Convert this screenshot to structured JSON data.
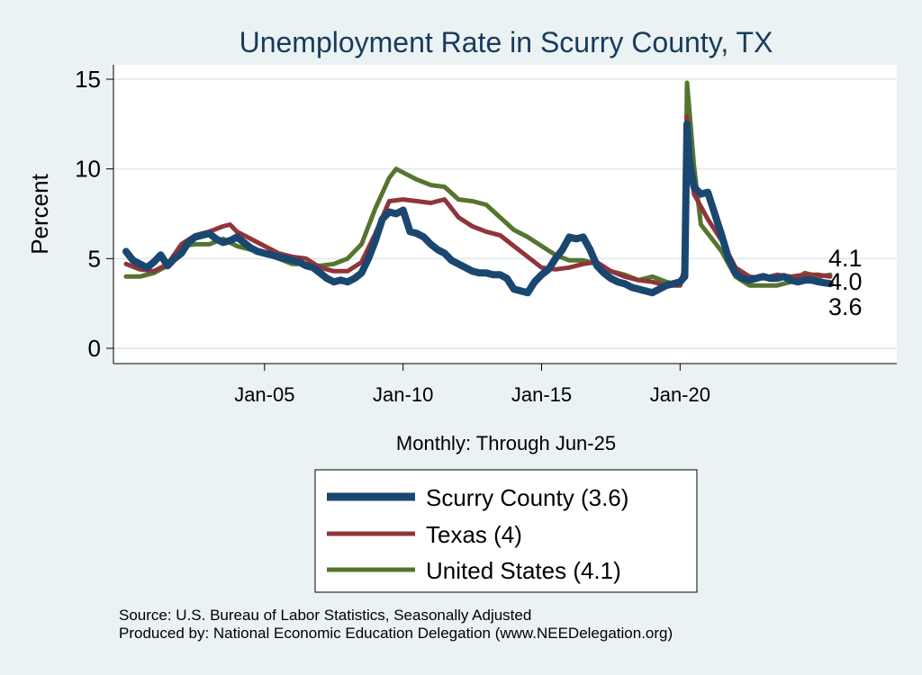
{
  "chart_data": {
    "type": "line",
    "title": "Unemployment Rate in Scurry  County, TX",
    "ylabel": "Percent",
    "xlabel": "Monthly: Through Jun-25",
    "ylim": [
      0,
      15
    ],
    "yticks": [
      0,
      5,
      10,
      15
    ],
    "xticks": [
      "Jan-05",
      "Jan-10",
      "Jan-15",
      "Jan-20"
    ],
    "grid": true,
    "legend_position": "bottom",
    "end_labels": [
      "4.1",
      "4.0",
      "3.6"
    ],
    "source_lines": [
      "Source: U.S. Bureau of Labor Statistics, Seasonally Adjusted",
      "Produced by: National Economic Education Delegation (www.NEEDelegation.org)"
    ],
    "series": [
      {
        "name": "Scurry  County (3.6)",
        "legend_label": "Scurry  County (3.6)",
        "color": "#1a476f",
        "stroke": 8,
        "points": [
          [
            "2000-01",
            5.4
          ],
          [
            "2000-04",
            4.9
          ],
          [
            "2000-07",
            4.7
          ],
          [
            "2000-10",
            4.5
          ],
          [
            "2001-01",
            4.8
          ],
          [
            "2001-04",
            5.2
          ],
          [
            "2001-07",
            4.6
          ],
          [
            "2001-10",
            5.0
          ],
          [
            "2002-01",
            5.3
          ],
          [
            "2002-04",
            5.9
          ],
          [
            "2002-07",
            6.2
          ],
          [
            "2002-10",
            6.3
          ],
          [
            "2003-01",
            6.4
          ],
          [
            "2003-04",
            6.1
          ],
          [
            "2003-07",
            5.9
          ],
          [
            "2003-10",
            6.0
          ],
          [
            "2004-01",
            6.2
          ],
          [
            "2004-04",
            5.9
          ],
          [
            "2004-07",
            5.6
          ],
          [
            "2004-10",
            5.4
          ],
          [
            "2005-01",
            5.3
          ],
          [
            "2005-04",
            5.2
          ],
          [
            "2005-07",
            5.1
          ],
          [
            "2005-10",
            5.0
          ],
          [
            "2006-01",
            4.9
          ],
          [
            "2006-04",
            4.8
          ],
          [
            "2006-07",
            4.6
          ],
          [
            "2006-10",
            4.5
          ],
          [
            "2007-01",
            4.2
          ],
          [
            "2007-04",
            3.9
          ],
          [
            "2007-07",
            3.7
          ],
          [
            "2007-10",
            3.8
          ],
          [
            "2008-01",
            3.7
          ],
          [
            "2008-04",
            3.9
          ],
          [
            "2008-07",
            4.2
          ],
          [
            "2008-10",
            5.0
          ],
          [
            "2009-01",
            6.0
          ],
          [
            "2009-04",
            7.2
          ],
          [
            "2009-07",
            7.6
          ],
          [
            "2009-10",
            7.5
          ],
          [
            "2010-01",
            7.7
          ],
          [
            "2010-04",
            6.5
          ],
          [
            "2010-07",
            6.4
          ],
          [
            "2010-10",
            6.2
          ],
          [
            "2011-01",
            5.8
          ],
          [
            "2011-04",
            5.5
          ],
          [
            "2011-07",
            5.3
          ],
          [
            "2011-10",
            4.9
          ],
          [
            "2012-01",
            4.7
          ],
          [
            "2012-04",
            4.5
          ],
          [
            "2012-07",
            4.3
          ],
          [
            "2012-10",
            4.2
          ],
          [
            "2013-01",
            4.2
          ],
          [
            "2013-04",
            4.1
          ],
          [
            "2013-07",
            4.1
          ],
          [
            "2013-10",
            3.9
          ],
          [
            "2014-01",
            3.3
          ],
          [
            "2014-04",
            3.2
          ],
          [
            "2014-07",
            3.1
          ],
          [
            "2014-10",
            3.7
          ],
          [
            "2015-01",
            4.1
          ],
          [
            "2015-04",
            4.4
          ],
          [
            "2015-07",
            5.0
          ],
          [
            "2015-10",
            5.5
          ],
          [
            "2016-01",
            6.2
          ],
          [
            "2016-04",
            6.1
          ],
          [
            "2016-07",
            6.2
          ],
          [
            "2016-10",
            5.5
          ],
          [
            "2017-01",
            4.6
          ],
          [
            "2017-04",
            4.2
          ],
          [
            "2017-07",
            3.9
          ],
          [
            "2017-10",
            3.7
          ],
          [
            "2018-01",
            3.6
          ],
          [
            "2018-04",
            3.4
          ],
          [
            "2018-07",
            3.3
          ],
          [
            "2018-10",
            3.2
          ],
          [
            "2019-01",
            3.1
          ],
          [
            "2019-04",
            3.3
          ],
          [
            "2019-07",
            3.5
          ],
          [
            "2019-10",
            3.6
          ],
          [
            "2020-01",
            3.7
          ],
          [
            "2020-03",
            4.0
          ],
          [
            "2020-04",
            12.5
          ],
          [
            "2020-05",
            10.5
          ],
          [
            "2020-07",
            9.0
          ],
          [
            "2020-10",
            8.6
          ],
          [
            "2021-01",
            8.7
          ],
          [
            "2021-04",
            7.5
          ],
          [
            "2021-07",
            6.3
          ],
          [
            "2021-10",
            5.0
          ],
          [
            "2022-01",
            4.2
          ],
          [
            "2022-04",
            3.9
          ],
          [
            "2022-07",
            3.8
          ],
          [
            "2022-10",
            3.9
          ],
          [
            "2023-01",
            4.0
          ],
          [
            "2023-04",
            3.9
          ],
          [
            "2023-07",
            3.9
          ],
          [
            "2023-10",
            4.0
          ],
          [
            "2024-01",
            3.8
          ],
          [
            "2024-04",
            3.7
          ],
          [
            "2024-07",
            3.8
          ],
          [
            "2024-10",
            3.8
          ],
          [
            "2025-01",
            3.7
          ],
          [
            "2025-06",
            3.6
          ]
        ]
      },
      {
        "name": "Texas (4)",
        "legend_label": "Texas (4)",
        "color": "#90353b",
        "stroke": 5,
        "points": [
          [
            "2000-01",
            4.7
          ],
          [
            "2000-07",
            4.4
          ],
          [
            "2001-01",
            4.3
          ],
          [
            "2001-07",
            4.7
          ],
          [
            "2002-01",
            5.8
          ],
          [
            "2002-07",
            6.3
          ],
          [
            "2003-01",
            6.5
          ],
          [
            "2003-07",
            6.8
          ],
          [
            "2003-10",
            6.9
          ],
          [
            "2004-01",
            6.5
          ],
          [
            "2004-07",
            6.1
          ],
          [
            "2005-01",
            5.7
          ],
          [
            "2005-07",
            5.3
          ],
          [
            "2006-01",
            5.1
          ],
          [
            "2006-07",
            5.0
          ],
          [
            "2007-01",
            4.5
          ],
          [
            "2007-07",
            4.3
          ],
          [
            "2008-01",
            4.3
          ],
          [
            "2008-07",
            4.8
          ],
          [
            "2009-01",
            6.4
          ],
          [
            "2009-07",
            8.2
          ],
          [
            "2010-01",
            8.3
          ],
          [
            "2010-07",
            8.2
          ],
          [
            "2011-01",
            8.1
          ],
          [
            "2011-07",
            8.3
          ],
          [
            "2012-01",
            7.3
          ],
          [
            "2012-07",
            6.8
          ],
          [
            "2013-01",
            6.5
          ],
          [
            "2013-07",
            6.3
          ],
          [
            "2014-01",
            5.7
          ],
          [
            "2014-07",
            5.1
          ],
          [
            "2015-01",
            4.5
          ],
          [
            "2015-07",
            4.4
          ],
          [
            "2016-01",
            4.5
          ],
          [
            "2016-07",
            4.7
          ],
          [
            "2017-01",
            4.8
          ],
          [
            "2017-07",
            4.3
          ],
          [
            "2018-01",
            4.0
          ],
          [
            "2018-07",
            3.8
          ],
          [
            "2019-01",
            3.7
          ],
          [
            "2019-07",
            3.5
          ],
          [
            "2020-01",
            3.5
          ],
          [
            "2020-03",
            4.5
          ],
          [
            "2020-04",
            12.9
          ],
          [
            "2020-05",
            10.5
          ],
          [
            "2020-07",
            8.6
          ],
          [
            "2021-01",
            7.2
          ],
          [
            "2021-07",
            6.0
          ],
          [
            "2022-01",
            4.5
          ],
          [
            "2022-07",
            4.0
          ],
          [
            "2023-01",
            3.9
          ],
          [
            "2023-07",
            4.1
          ],
          [
            "2024-01",
            4.0
          ],
          [
            "2024-07",
            4.1
          ],
          [
            "2025-01",
            4.1
          ],
          [
            "2025-06",
            4.0
          ]
        ]
      },
      {
        "name": "United States (4.1)",
        "legend_label": "United States (4.1)",
        "color": "#55752f",
        "stroke": 5,
        "points": [
          [
            "2000-01",
            4.0
          ],
          [
            "2000-07",
            4.0
          ],
          [
            "2001-01",
            4.2
          ],
          [
            "2001-07",
            4.6
          ],
          [
            "2002-01",
            5.7
          ],
          [
            "2002-07",
            5.8
          ],
          [
            "2003-01",
            5.8
          ],
          [
            "2003-07",
            6.1
          ],
          [
            "2004-01",
            5.7
          ],
          [
            "2004-07",
            5.5
          ],
          [
            "2005-01",
            5.3
          ],
          [
            "2005-07",
            5.0
          ],
          [
            "2006-01",
            4.7
          ],
          [
            "2006-07",
            4.7
          ],
          [
            "2007-01",
            4.6
          ],
          [
            "2007-07",
            4.7
          ],
          [
            "2008-01",
            5.0
          ],
          [
            "2008-07",
            5.8
          ],
          [
            "2009-01",
            7.8
          ],
          [
            "2009-07",
            9.5
          ],
          [
            "2009-10",
            10.0
          ],
          [
            "2010-01",
            9.8
          ],
          [
            "2010-07",
            9.4
          ],
          [
            "2011-01",
            9.1
          ],
          [
            "2011-07",
            9.0
          ],
          [
            "2012-01",
            8.3
          ],
          [
            "2012-07",
            8.2
          ],
          [
            "2013-01",
            8.0
          ],
          [
            "2013-07",
            7.3
          ],
          [
            "2014-01",
            6.6
          ],
          [
            "2014-07",
            6.2
          ],
          [
            "2015-01",
            5.7
          ],
          [
            "2015-07",
            5.2
          ],
          [
            "2016-01",
            4.9
          ],
          [
            "2016-07",
            4.9
          ],
          [
            "2017-01",
            4.7
          ],
          [
            "2017-07",
            4.3
          ],
          [
            "2018-01",
            4.1
          ],
          [
            "2018-07",
            3.8
          ],
          [
            "2019-01",
            4.0
          ],
          [
            "2019-07",
            3.7
          ],
          [
            "2020-01",
            3.5
          ],
          [
            "2020-03",
            4.4
          ],
          [
            "2020-04",
            14.8
          ],
          [
            "2020-05",
            13.3
          ],
          [
            "2020-07",
            10.2
          ],
          [
            "2020-10",
            6.9
          ],
          [
            "2021-01",
            6.4
          ],
          [
            "2021-07",
            5.4
          ],
          [
            "2022-01",
            4.0
          ],
          [
            "2022-07",
            3.5
          ],
          [
            "2023-01",
            3.5
          ],
          [
            "2023-07",
            3.5
          ],
          [
            "2024-01",
            3.7
          ],
          [
            "2024-07",
            4.2
          ],
          [
            "2025-01",
            4.0
          ],
          [
            "2025-06",
            4.1
          ]
        ]
      }
    ]
  }
}
